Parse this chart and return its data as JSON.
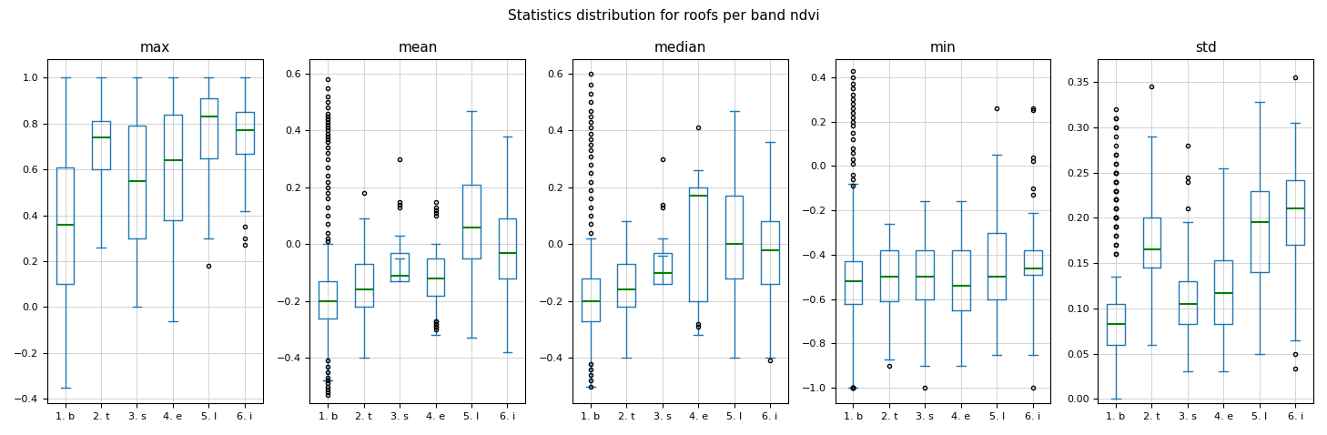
{
  "title": "Statistics distribution for roofs per band ndvi",
  "subplots": [
    "max",
    "mean",
    "median",
    "min",
    "std"
  ],
  "xticklabels": [
    "1. b",
    "2. t",
    "3. s",
    "4. e",
    "5. l",
    "6. i"
  ],
  "box_color": "#1f77b4",
  "median_color": "green",
  "flier_color": "black",
  "max": {
    "ylim": [
      -0.42,
      1.08
    ],
    "yticks": [
      -0.4,
      -0.2,
      0.0,
      0.2,
      0.4,
      0.6,
      0.8,
      1.0
    ],
    "boxes": [
      {
        "q1": 0.1,
        "med": 0.36,
        "q3": 0.61,
        "whislo": -0.35,
        "whishi": 1.0,
        "fliers": []
      },
      {
        "q1": 0.6,
        "med": 0.74,
        "q3": 0.81,
        "whislo": 0.26,
        "whishi": 1.0,
        "fliers": []
      },
      {
        "q1": 0.3,
        "med": 0.55,
        "q3": 0.79,
        "whislo": 0.0,
        "whishi": 1.0,
        "fliers": []
      },
      {
        "q1": 0.38,
        "med": 0.64,
        "q3": 0.84,
        "whislo": -0.06,
        "whishi": 1.0,
        "fliers": []
      },
      {
        "q1": 0.65,
        "med": 0.83,
        "q3": 0.91,
        "whislo": 0.3,
        "whishi": 1.0,
        "fliers": [
          0.18
        ]
      },
      {
        "q1": 0.67,
        "med": 0.77,
        "q3": 0.85,
        "whislo": 0.42,
        "whishi": 1.0,
        "fliers": [
          0.35,
          0.3,
          0.27
        ]
      }
    ]
  },
  "mean": {
    "ylim": [
      -0.56,
      0.65
    ],
    "yticks": [
      -0.4,
      -0.2,
      0.0,
      0.2,
      0.4,
      0.6
    ],
    "boxes": [
      {
        "q1": -0.26,
        "med": -0.2,
        "q3": -0.13,
        "whislo": -0.48,
        "whishi": 0.0,
        "fliers": [
          0.58,
          0.55,
          0.52,
          0.5,
          0.48,
          0.46,
          0.45,
          0.44,
          0.43,
          0.42,
          0.41,
          0.4,
          0.39,
          0.38,
          0.37,
          0.36,
          0.34,
          0.32,
          0.3,
          0.27,
          0.24,
          0.22,
          0.2,
          0.18,
          0.16,
          0.13,
          0.1,
          0.07,
          0.04,
          0.02,
          0.01,
          -0.41,
          -0.43,
          -0.45,
          -0.47,
          -0.48,
          -0.49,
          -0.5,
          -0.51,
          -0.52,
          -0.53
        ]
      },
      {
        "q1": -0.22,
        "med": -0.16,
        "q3": -0.07,
        "whislo": -0.4,
        "whishi": 0.09,
        "fliers": [
          0.18
        ]
      },
      {
        "q1": -0.13,
        "med": -0.11,
        "q3": -0.03,
        "whislo": -0.05,
        "whishi": 0.03,
        "fliers": [
          0.3,
          0.15,
          0.14,
          0.13
        ]
      },
      {
        "q1": -0.18,
        "med": -0.12,
        "q3": -0.05,
        "whislo": -0.32,
        "whishi": 0.0,
        "fliers": [
          0.15,
          0.13,
          0.12,
          0.11,
          0.1,
          -0.27,
          -0.27,
          -0.28,
          -0.28,
          -0.29,
          -0.29,
          -0.3
        ]
      },
      {
        "q1": -0.05,
        "med": 0.06,
        "q3": 0.21,
        "whislo": -0.33,
        "whishi": 0.47,
        "fliers": []
      },
      {
        "q1": -0.12,
        "med": -0.03,
        "q3": 0.09,
        "whislo": -0.38,
        "whishi": 0.38,
        "fliers": []
      }
    ]
  },
  "median": {
    "ylim": [
      -0.56,
      0.65
    ],
    "yticks": [
      -0.4,
      -0.2,
      0.0,
      0.2,
      0.4,
      0.6
    ],
    "boxes": [
      {
        "q1": -0.27,
        "med": -0.2,
        "q3": -0.12,
        "whislo": -0.5,
        "whishi": 0.02,
        "fliers": [
          0.6,
          0.56,
          0.53,
          0.5,
          0.47,
          0.45,
          0.43,
          0.41,
          0.39,
          0.37,
          0.35,
          0.33,
          0.31,
          0.28,
          0.25,
          0.22,
          0.19,
          0.16,
          0.13,
          0.1,
          0.07,
          0.04,
          -0.42,
          -0.44,
          -0.46,
          -0.48,
          -0.5
        ]
      },
      {
        "q1": -0.22,
        "med": -0.16,
        "q3": -0.07,
        "whislo": -0.4,
        "whishi": 0.08,
        "fliers": []
      },
      {
        "q1": -0.14,
        "med": -0.1,
        "q3": -0.03,
        "whislo": -0.04,
        "whishi": 0.02,
        "fliers": [
          0.3,
          0.14,
          0.13
        ]
      },
      {
        "q1": -0.2,
        "med": 0.17,
        "q3": 0.2,
        "whislo": -0.32,
        "whishi": 0.26,
        "fliers": [
          0.41,
          -0.28,
          -0.29
        ]
      },
      {
        "q1": -0.12,
        "med": 0.0,
        "q3": 0.17,
        "whislo": -0.4,
        "whishi": 0.47,
        "fliers": []
      },
      {
        "q1": -0.14,
        "med": -0.02,
        "q3": 0.08,
        "whislo": -0.4,
        "whishi": 0.36,
        "fliers": [
          -0.41
        ]
      }
    ]
  },
  "min": {
    "ylim": [
      -1.07,
      0.48
    ],
    "yticks": [
      -1.0,
      -0.8,
      -0.6,
      -0.4,
      -0.2,
      0.0,
      0.2,
      0.4
    ],
    "boxes": [
      {
        "q1": -0.62,
        "med": -0.52,
        "q3": -0.43,
        "whislo": -1.0,
        "whishi": -0.08,
        "fliers": [
          0.43,
          0.4,
          0.37,
          0.35,
          0.32,
          0.3,
          0.28,
          0.26,
          0.24,
          0.22,
          0.2,
          0.18,
          0.15,
          0.12,
          0.08,
          0.06,
          0.03,
          0.01,
          -0.04,
          -0.06,
          -0.09,
          -1.0,
          -1.0,
          -1.0,
          -1.0,
          -1.0
        ]
      },
      {
        "q1": -0.61,
        "med": -0.5,
        "q3": -0.38,
        "whislo": -0.87,
        "whishi": -0.26,
        "fliers": [
          -0.9
        ]
      },
      {
        "q1": -0.6,
        "med": -0.5,
        "q3": -0.38,
        "whislo": -0.9,
        "whishi": -0.16,
        "fliers": [
          -1.0
        ]
      },
      {
        "q1": -0.65,
        "med": -0.54,
        "q3": -0.38,
        "whislo": -0.9,
        "whishi": -0.16,
        "fliers": []
      },
      {
        "q1": -0.6,
        "med": -0.5,
        "q3": -0.3,
        "whislo": -0.85,
        "whishi": 0.05,
        "fliers": [
          0.26
        ]
      },
      {
        "q1": -0.49,
        "med": -0.46,
        "q3": -0.38,
        "whislo": -0.85,
        "whishi": -0.21,
        "fliers": [
          0.26,
          0.25,
          0.04,
          0.02,
          -0.1,
          -0.13,
          -1.0
        ]
      }
    ]
  },
  "std": {
    "ylim": [
      -0.005,
      0.375
    ],
    "yticks": [
      0.0,
      0.05,
      0.1,
      0.15,
      0.2,
      0.25,
      0.3,
      0.35
    ],
    "boxes": [
      {
        "q1": 0.06,
        "med": 0.083,
        "q3": 0.105,
        "whislo": 0.0,
        "whishi": 0.135,
        "fliers": [
          0.32,
          0.31,
          0.31,
          0.3,
          0.3,
          0.29,
          0.28,
          0.27,
          0.27,
          0.26,
          0.26,
          0.25,
          0.25,
          0.25,
          0.24,
          0.24,
          0.24,
          0.23,
          0.23,
          0.23,
          0.22,
          0.22,
          0.22,
          0.21,
          0.21,
          0.21,
          0.2,
          0.2,
          0.2,
          0.2,
          0.19,
          0.19,
          0.19,
          0.18,
          0.18,
          0.17,
          0.17,
          0.16,
          0.16
        ]
      },
      {
        "q1": 0.145,
        "med": 0.165,
        "q3": 0.2,
        "whislo": 0.06,
        "whishi": 0.29,
        "fliers": [
          0.345
        ]
      },
      {
        "q1": 0.083,
        "med": 0.105,
        "q3": 0.13,
        "whislo": 0.03,
        "whishi": 0.195,
        "fliers": [
          0.28,
          0.245,
          0.24,
          0.21
        ]
      },
      {
        "q1": 0.083,
        "med": 0.117,
        "q3": 0.153,
        "whislo": 0.03,
        "whishi": 0.255,
        "fliers": []
      },
      {
        "q1": 0.14,
        "med": 0.195,
        "q3": 0.23,
        "whislo": 0.05,
        "whishi": 0.328,
        "fliers": []
      },
      {
        "q1": 0.17,
        "med": 0.21,
        "q3": 0.242,
        "whislo": 0.065,
        "whishi": 0.305,
        "fliers": [
          0.355,
          0.05,
          0.033
        ]
      }
    ]
  }
}
